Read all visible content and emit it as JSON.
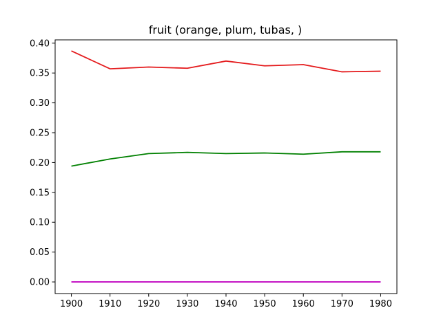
{
  "chart_data": {
    "type": "line",
    "title": "fruit (orange, plum, tubas, )",
    "xlabel": "",
    "ylabel": "",
    "x": [
      1900,
      1910,
      1920,
      1930,
      1940,
      1950,
      1960,
      1970,
      1980
    ],
    "x_ticks": [
      "1900",
      "1910",
      "1920",
      "1930",
      "1940",
      "1950",
      "1960",
      "1970",
      "1980"
    ],
    "y_ticks": [
      "0.00",
      "0.05",
      "0.10",
      "0.15",
      "0.20",
      "0.25",
      "0.30",
      "0.35",
      "0.40"
    ],
    "xlim": [
      1895.8,
      1984.2
    ],
    "ylim": [
      -0.0195,
      0.4055
    ],
    "grid": false,
    "series": [
      {
        "color": "#e41a1c",
        "values": [
          0.387,
          0.357,
          0.36,
          0.358,
          0.37,
          0.362,
          0.364,
          0.352,
          0.353
        ]
      },
      {
        "color": "#008000",
        "values": [
          0.194,
          0.206,
          0.215,
          0.217,
          0.215,
          0.216,
          0.214,
          0.218,
          0.218
        ]
      },
      {
        "color": "#bf00bf",
        "values": [
          0.0,
          0.0,
          0.0,
          0.0,
          0.0,
          0.0,
          0.0,
          0.0,
          0.0
        ]
      }
    ]
  }
}
